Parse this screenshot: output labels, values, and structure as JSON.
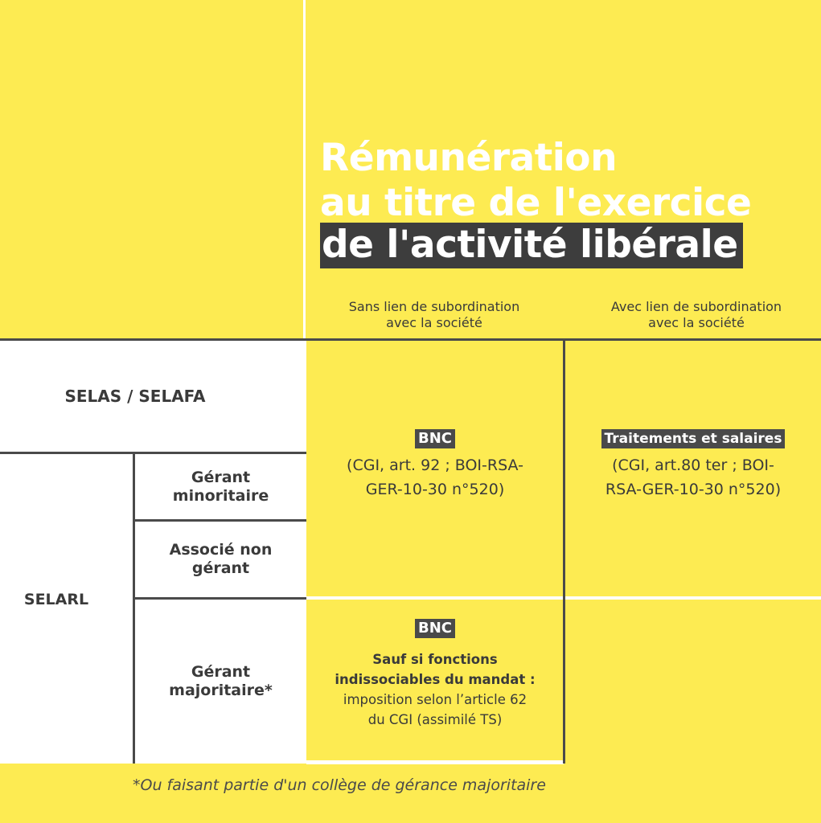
{
  "title": {
    "line1": "Rémunération",
    "line2": "au titre de l'exercice",
    "line3": "de l'activité libérale"
  },
  "columns": {
    "without_subordination": [
      "Sans lien de subordination",
      "avec la société"
    ],
    "with_subordination": [
      "Avec lien de subordination",
      "avec la société"
    ]
  },
  "rows": {
    "selas": "SELAS / SELAFA",
    "selarl": "SELARL",
    "gerant_minoritaire": [
      "Gérant",
      "minoritaire"
    ],
    "associe_non_gerant": [
      "Associé non",
      "gérant"
    ],
    "gerant_majoritaire": [
      "Gérant",
      "majoritaire*"
    ]
  },
  "cells": {
    "bnc_main": {
      "badge": "BNC",
      "ref": [
        "(CGI, art. 92 ; BOI-RSA-",
        "GER-10-30 n°520)"
      ]
    },
    "ts_main": {
      "badge": "Traitements et salaires",
      "ref": [
        "(CGI, art.80 ter ; BOI-",
        "RSA-GER-10-30 n°520)"
      ]
    },
    "bnc_majoritaire": {
      "badge": "BNC",
      "bold": [
        "Sauf si fonctions",
        "indissociables du mandat :"
      ],
      "normal": [
        "imposition selon l’article 62",
        "du CGI (assimilé TS)"
      ]
    }
  },
  "footnote": "*Ou faisant partie d'un collège de gérance majoritaire"
}
